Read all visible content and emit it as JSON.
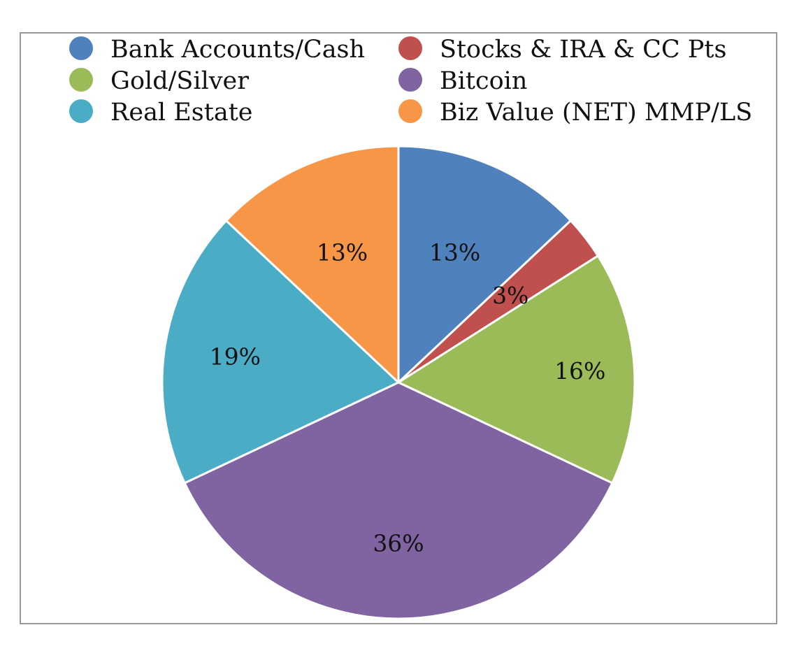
{
  "chart_data": {
    "type": "pie",
    "slices": [
      {
        "name": "Bank Accounts/Cash",
        "label": "13%",
        "value": 13,
        "color": "#4f81bd"
      },
      {
        "name": "Stocks & IRA & CC Pts",
        "label": "3%",
        "value": 3,
        "color": "#c0504d"
      },
      {
        "name": "Gold/Silver",
        "label": "16%",
        "value": 16,
        "color": "#9bbb59"
      },
      {
        "name": "Bitcoin",
        "label": "36%",
        "value": 36,
        "color": "#8064a2"
      },
      {
        "name": "Real Estate",
        "label": "19%",
        "value": 19,
        "color": "#4bacc6"
      },
      {
        "name": "Biz Value (NET) MMP/LS",
        "label": "13%",
        "value": 13,
        "color": "#f79646"
      }
    ],
    "legend_placement": "top",
    "start_direction": "12 o'clock",
    "direction": "clockwise"
  }
}
